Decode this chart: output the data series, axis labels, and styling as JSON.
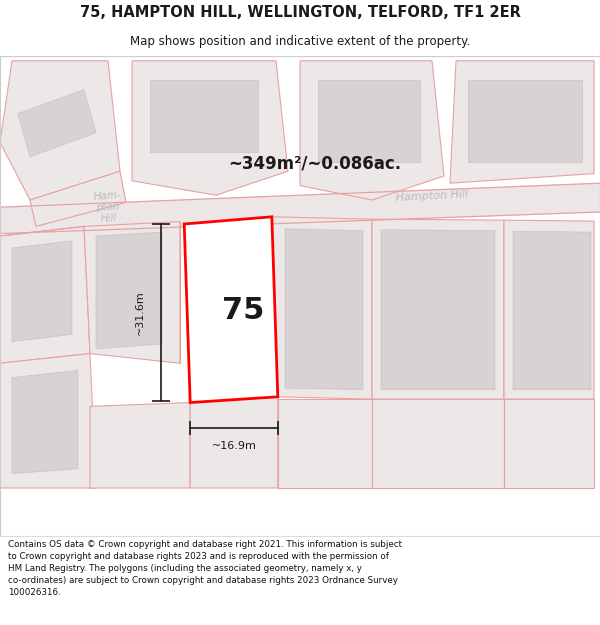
{
  "title": "75, HAMPTON HILL, WELLINGTON, TELFORD, TF1 2ER",
  "subtitle": "Map shows position and indicative extent of the property.",
  "footer_line1": "Contains OS data © Crown copyright and database right 2021. This information is subject",
  "footer_line2": "to Crown copyright and database rights 2023 and is reproduced with the permission of",
  "footer_line3": "HM Land Registry. The polygons (including the associated geometry, namely x, y",
  "footer_line4": "co-ordinates) are subject to Crown copyright and database rights 2023 Ordnance Survey",
  "footer_line5": "100026316.",
  "area_label": "~349m²/~0.086ac.",
  "street_label_left": "Hampton\nHill",
  "street_label_right": "Hampton Hill",
  "plot_number": "75",
  "dim_width": "~16.9m",
  "dim_height": "~31.6m",
  "map_bg": "#f2eeee",
  "plot_fill": "#ffffff",
  "plot_edge": "#ff0000",
  "pink_line": "#e8a0a0",
  "parcel_fill": "#ede8e8",
  "building_fill": "#d8d2d2",
  "dim_color": "#1a1a1a",
  "title_color": "#1a1a1a",
  "street_color": "#bbbbbb"
}
